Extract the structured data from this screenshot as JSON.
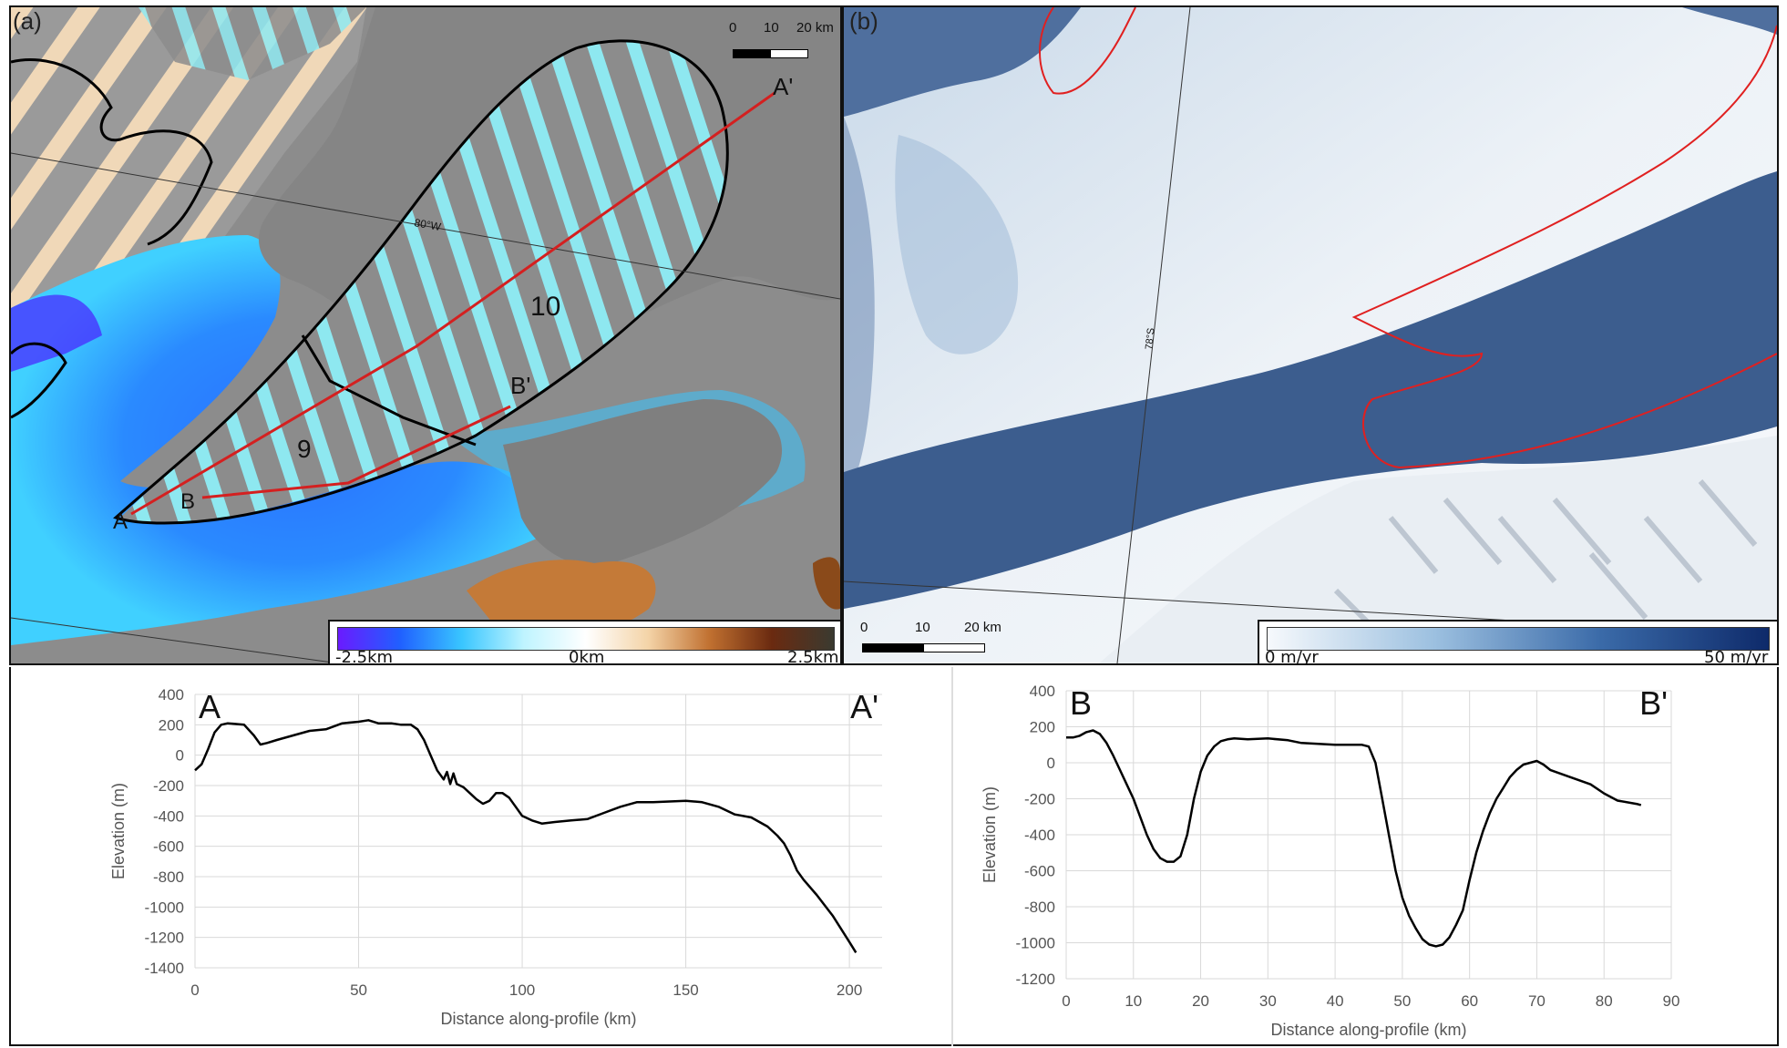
{
  "panel_a": {
    "label": "(a)",
    "scalebar": {
      "ticks": [
        "0",
        "10",
        "20 km"
      ]
    },
    "colorbar": {
      "min_label": "-2.5km",
      "mid_label": "0km",
      "max_label": "2.5km",
      "colors": [
        "#6a1bff",
        "#2060ff",
        "#39c6ff",
        "#bff4ff",
        "#ffffff",
        "#f4d4a8",
        "#c07030",
        "#6a2a10",
        "#3a3a30"
      ]
    },
    "map_labels": {
      "profile_a_start": "A",
      "profile_a_end": "A'",
      "profile_b_start": "B",
      "profile_b_end": "B'",
      "region_9": "9",
      "region_10": "10",
      "graticule_lon": "80°W"
    },
    "colors": {
      "profile_line": "#d42020",
      "outline": "#000000",
      "hatch": "#8ee8f0",
      "land": "#8a8a8a"
    }
  },
  "panel_b": {
    "label": "(b)",
    "scalebar": {
      "ticks": [
        "0",
        "10",
        "20 km"
      ]
    },
    "colorbar": {
      "min_label": "0 m/yr",
      "max_label": "50 m/yr",
      "colors": [
        "#f6f9fc",
        "#9cc0e0",
        "#3a6aa8",
        "#0e2a6a"
      ]
    },
    "map_labels": {
      "graticule_lat": "78°S"
    },
    "colors": {
      "trough": "#3c5d8e",
      "outline": "#e02020",
      "ice": "#e4ecf3"
    }
  },
  "chart_data": [
    {
      "type": "line",
      "start_label": "A",
      "end_label": "A'",
      "xlabel": "Distance along-profile (km)",
      "ylabel": "Elevation (m)",
      "xlim": [
        0,
        210
      ],
      "ylim": [
        -1400,
        400
      ],
      "xticks": [
        0,
        50,
        100,
        150,
        200
      ],
      "yticks": [
        400,
        200,
        0,
        -200,
        -400,
        -600,
        -800,
        -1000,
        -1200,
        -1400
      ],
      "grid": true,
      "line_color": "#000000",
      "x": [
        0,
        2,
        4,
        6,
        8,
        10,
        15,
        18,
        20,
        22,
        25,
        30,
        35,
        40,
        45,
        50,
        53,
        56,
        60,
        63,
        66,
        68,
        70,
        72,
        74,
        76,
        77,
        78,
        79,
        80,
        82,
        84,
        86,
        88,
        90,
        92,
        94,
        96,
        98,
        100,
        103,
        106,
        110,
        115,
        120,
        125,
        130,
        135,
        140,
        145,
        150,
        155,
        160,
        165,
        170,
        175,
        178,
        180,
        182,
        184,
        186,
        190,
        195,
        200,
        202
      ],
      "y": [
        -100,
        -60,
        40,
        150,
        200,
        210,
        200,
        130,
        70,
        80,
        100,
        130,
        160,
        170,
        210,
        220,
        230,
        210,
        210,
        200,
        200,
        170,
        100,
        0,
        -100,
        -160,
        -110,
        -190,
        -120,
        -190,
        -210,
        -250,
        -290,
        -320,
        -300,
        -250,
        -250,
        -280,
        -340,
        -400,
        -430,
        -450,
        -440,
        -430,
        -420,
        -380,
        -340,
        -310,
        -310,
        -305,
        -300,
        -310,
        -340,
        -390,
        -410,
        -470,
        -530,
        -580,
        -660,
        -760,
        -820,
        -920,
        -1060,
        -1230,
        -1300
      ]
    },
    {
      "type": "line",
      "start_label": "B",
      "end_label": "B'",
      "xlabel": "Distance along-profile (km)",
      "ylabel": "Elevation (m)",
      "xlim": [
        0,
        90
      ],
      "ylim": [
        -1200,
        400
      ],
      "xticks": [
        0,
        10,
        20,
        30,
        40,
        50,
        60,
        70,
        80,
        90
      ],
      "yticks": [
        400,
        200,
        0,
        -200,
        -400,
        -600,
        -800,
        -1000,
        -1200
      ],
      "grid": true,
      "line_color": "#000000",
      "x": [
        0,
        1,
        2,
        3,
        4,
        5,
        6,
        7,
        8,
        9,
        10,
        11,
        12,
        13,
        14,
        15,
        16,
        17,
        18,
        19,
        20,
        21,
        22,
        23,
        24,
        25,
        27,
        30,
        33,
        35,
        40,
        44,
        45,
        46,
        47,
        48,
        49,
        50,
        51,
        52,
        53,
        54,
        55,
        56,
        57,
        58,
        59,
        60,
        61,
        62,
        63,
        64,
        65,
        66,
        67,
        68,
        69,
        70,
        71,
        72,
        75,
        78,
        80,
        82,
        85,
        85.5
      ],
      "y": [
        140,
        140,
        150,
        170,
        180,
        160,
        110,
        40,
        -40,
        -120,
        -200,
        -300,
        -400,
        -480,
        -530,
        -550,
        -550,
        -520,
        -400,
        -200,
        -50,
        40,
        90,
        120,
        130,
        135,
        130,
        135,
        125,
        110,
        100,
        100,
        90,
        0,
        -200,
        -400,
        -600,
        -750,
        -850,
        -920,
        -980,
        -1010,
        -1020,
        -1010,
        -970,
        -900,
        -820,
        -650,
        -500,
        -380,
        -280,
        -200,
        -140,
        -80,
        -40,
        -10,
        0,
        10,
        -10,
        -40,
        -80,
        -120,
        -170,
        -210,
        -230,
        -235
      ]
    }
  ]
}
